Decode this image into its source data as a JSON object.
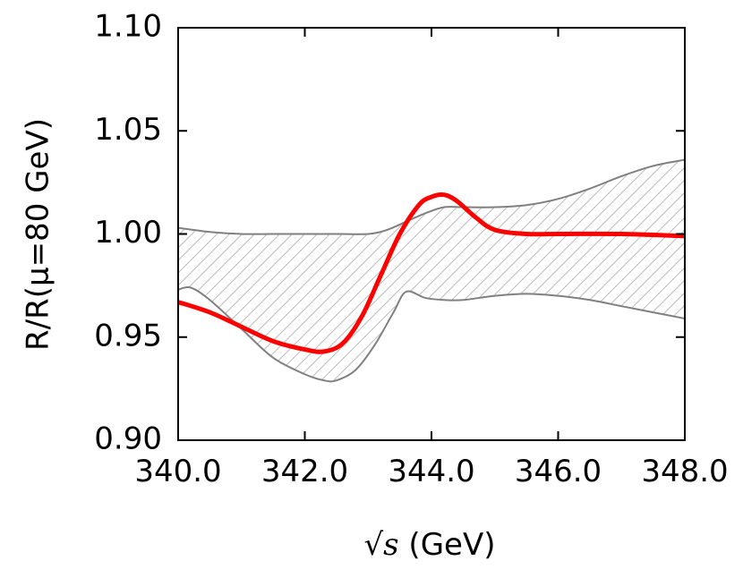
{
  "chart_data": {
    "type": "line",
    "xlabel_prefix": "√s",
    "xlabel_suffix": " (GeV)",
    "ylabel": "R/R(μ=80 GeV)",
    "xlim": [
      340.0,
      348.0
    ],
    "ylim": [
      0.9,
      1.1
    ],
    "x_ticks": [
      "340.0",
      "342.0",
      "344.0",
      "346.0",
      "348.0"
    ],
    "y_ticks": [
      "0.90",
      "0.95",
      "1.00",
      "1.05",
      "1.10"
    ],
    "grid": false,
    "band": {
      "upper": {
        "x": [
          340.0,
          340.5,
          341.0,
          341.5,
          342.0,
          342.5,
          343.0,
          343.3,
          343.6,
          343.9,
          344.2,
          344.5,
          345.0,
          345.5,
          346.0,
          346.5,
          347.0,
          347.5,
          348.0
        ],
        "y": [
          1.003,
          1.001,
          1.0,
          1.0,
          1.0,
          1.0,
          1.0,
          1.002,
          1.006,
          1.01,
          1.013,
          1.013,
          1.013,
          1.014,
          1.017,
          1.022,
          1.028,
          1.033,
          1.036
        ]
      },
      "lower": {
        "x": [
          340.0,
          340.2,
          340.5,
          341.0,
          341.5,
          342.0,
          342.3,
          342.5,
          342.8,
          343.1,
          343.4,
          343.6,
          343.9,
          344.2,
          344.5,
          345.0,
          345.5,
          346.0,
          346.5,
          347.0,
          347.5,
          348.0
        ],
        "y": [
          0.973,
          0.974,
          0.968,
          0.954,
          0.94,
          0.932,
          0.929,
          0.929,
          0.934,
          0.946,
          0.962,
          0.972,
          0.969,
          0.968,
          0.968,
          0.97,
          0.971,
          0.97,
          0.968,
          0.965,
          0.962,
          0.959
        ]
      }
    },
    "series": [
      {
        "color": "#ff0000",
        "x": [
          340.0,
          340.5,
          341.0,
          341.5,
          342.0,
          342.3,
          342.6,
          342.9,
          343.2,
          343.5,
          343.8,
          344.0,
          344.2,
          344.4,
          344.7,
          345.0,
          345.5,
          346.0,
          347.0,
          348.0
        ],
        "y": [
          0.967,
          0.962,
          0.955,
          0.948,
          0.944,
          0.943,
          0.947,
          0.96,
          0.98,
          1.0,
          1.014,
          1.018,
          1.019,
          1.016,
          1.008,
          1.002,
          1.0,
          1.0,
          1.0,
          0.999
        ]
      }
    ],
    "colors": {
      "band_line": "#808080",
      "hatch": "#c0c0c0",
      "series": "#ff0000"
    }
  }
}
